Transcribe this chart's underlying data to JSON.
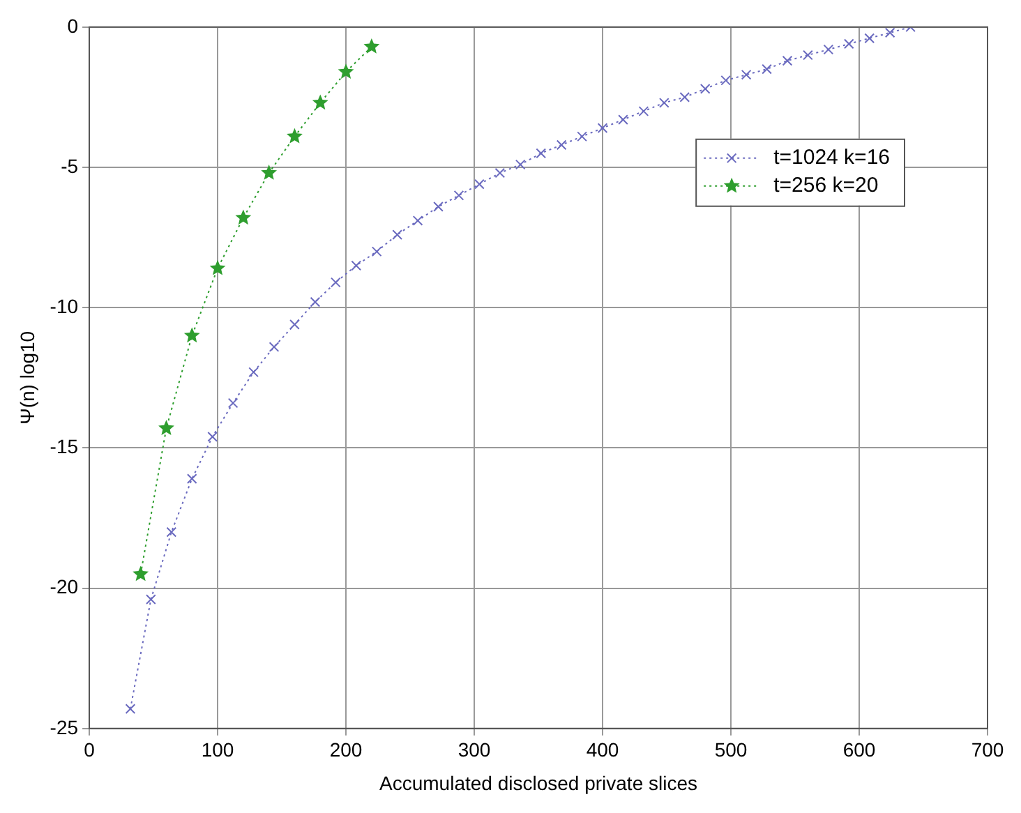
{
  "chart_data": {
    "type": "line",
    "xlabel": "Accumulated disclosed private slices",
    "ylabel": "Ψ(n) log10",
    "xlim": [
      0,
      700
    ],
    "xticks": [
      0,
      100,
      200,
      300,
      400,
      500,
      600,
      700
    ],
    "ylim": [
      -25,
      0
    ],
    "yticks": [
      -25,
      -20,
      -15,
      -10,
      -5,
      0
    ],
    "grid": true,
    "legend": "top right",
    "line_style": "dotted",
    "series": [
      {
        "name": "t=1024 k=16",
        "color": "#6a6abf",
        "marker": "cross",
        "x": [
          32,
          48,
          64,
          80,
          96,
          112,
          128,
          144,
          160,
          176,
          192,
          208,
          224,
          240,
          256,
          272,
          288,
          304,
          320,
          336,
          352,
          368,
          384,
          400,
          416,
          432,
          448,
          464,
          480,
          496,
          512,
          528,
          544,
          560,
          576,
          592,
          608,
          624,
          640
        ],
        "values": [
          -24.3,
          -20.4,
          -18.0,
          -16.1,
          -14.6,
          -13.4,
          -12.3,
          -11.4,
          -10.6,
          -9.8,
          -9.1,
          -8.5,
          -8.0,
          -7.4,
          -6.9,
          -6.4,
          -6.0,
          -5.6,
          -5.2,
          -4.9,
          -4.5,
          -4.2,
          -3.9,
          -3.6,
          -3.3,
          -3.0,
          -2.7,
          -2.5,
          -2.2,
          -1.9,
          -1.7,
          -1.5,
          -1.2,
          -1.0,
          -0.8,
          -0.6,
          -0.4,
          -0.2,
          0
        ]
      },
      {
        "name": "t=256 k=20",
        "color": "#2e9e2e",
        "marker": "star",
        "x": [
          40,
          60,
          80,
          100,
          120,
          140,
          160,
          180,
          200,
          220
        ],
        "values": [
          -19.5,
          -14.3,
          -11.0,
          -8.6,
          -6.8,
          -5.2,
          -3.9,
          -2.7,
          -1.6,
          -0.7
        ]
      }
    ]
  }
}
